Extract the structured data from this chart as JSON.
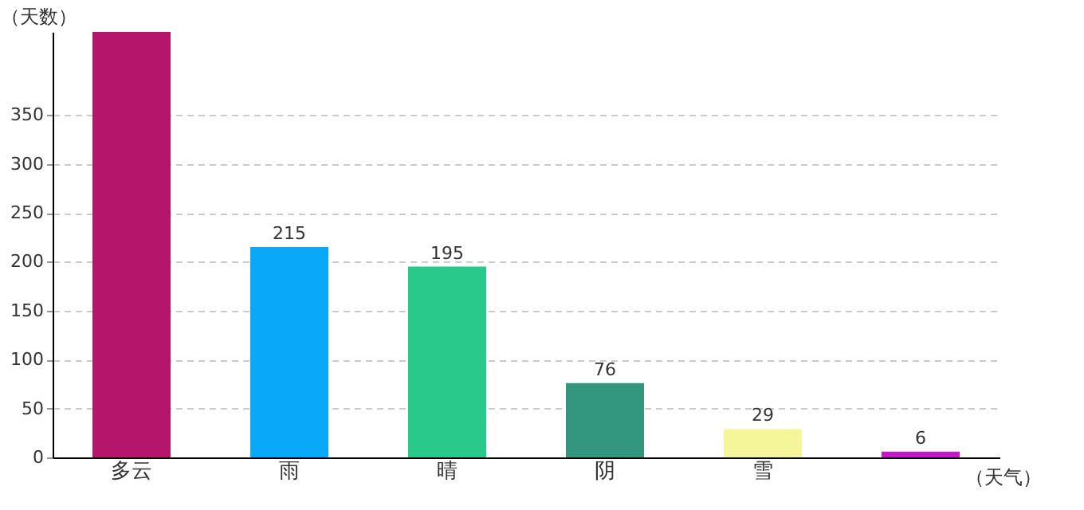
{
  "chart_data": {
    "type": "bar",
    "ylabel": "（天数）",
    "xlabel": "（天气）",
    "categories": [
      "多云",
      "雨",
      "晴",
      "阴",
      "雪",
      null
    ],
    "values": [
      435,
      215,
      195,
      76,
      29,
      6
    ],
    "value_labels": [
      null,
      "215",
      "195",
      "76",
      "29",
      "6"
    ],
    "colors": [
      "#b5156a",
      "#0aa8f8",
      "#28c98b",
      "#33977f",
      "#f5f59a",
      "#c21ac8"
    ],
    "ylim": [
      0,
      435
    ],
    "yticks": [
      0,
      50,
      100,
      150,
      200,
      250,
      300,
      350
    ],
    "grid": "y",
    "legend": false
  }
}
